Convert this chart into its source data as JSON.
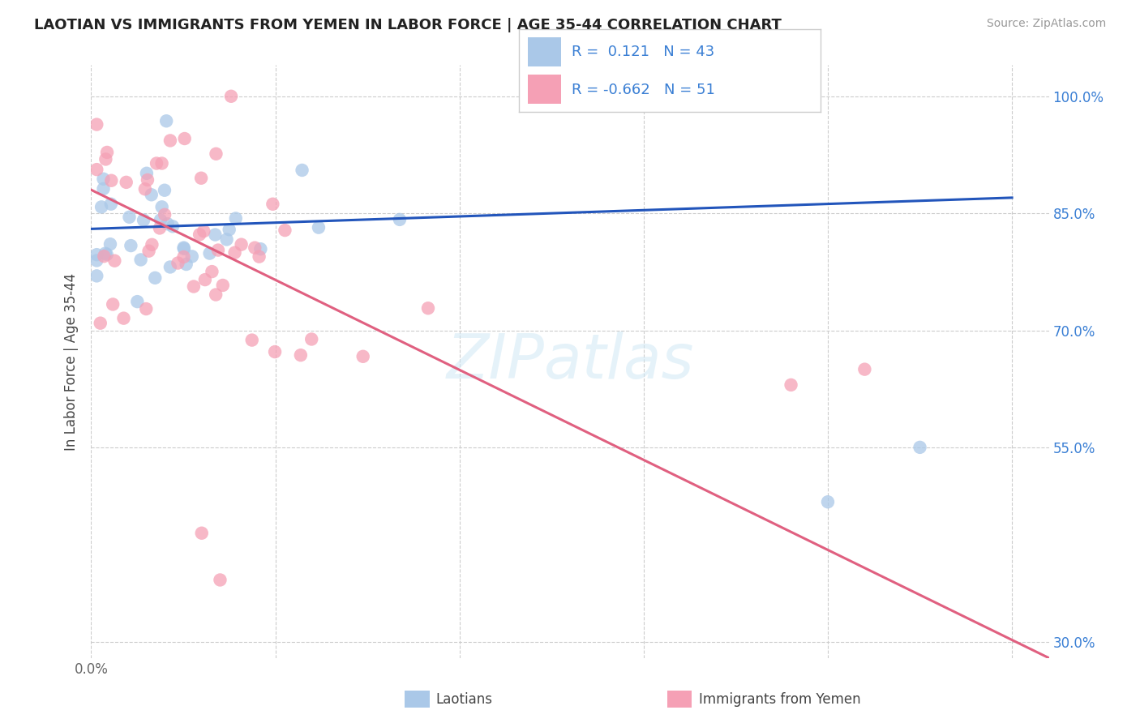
{
  "title": "LAOTIAN VS IMMIGRANTS FROM YEMEN IN LABOR FORCE | AGE 35-44 CORRELATION CHART",
  "source": "Source: ZipAtlas.com",
  "ylabel": "In Labor Force | Age 35-44",
  "blue_R": 0.121,
  "blue_N": 43,
  "pink_R": -0.662,
  "pink_N": 51,
  "blue_color": "#aac8e8",
  "blue_line_color": "#2255bb",
  "pink_color": "#f5a0b5",
  "pink_line_color": "#e06080",
  "legend_blue_R": "0.121",
  "legend_pink_R": "-0.662",
  "xlim": [
    0.0,
    0.52
  ],
  "ylim": [
    0.28,
    1.04
  ],
  "yticks": [
    0.3,
    0.55,
    0.7,
    0.85,
    1.0
  ],
  "ytick_labels": [
    "30.0%",
    "55.0%",
    "70.0%",
    "85.0%",
    "100.0%"
  ],
  "grid_color": "#cccccc",
  "watermark_color": "#d0e8f5",
  "bottom_legend_labels": [
    "Laotians",
    "Immigrants from Yemen"
  ],
  "blue_trend": [
    0.0,
    0.83,
    0.5,
    0.87
  ],
  "pink_trend": [
    0.0,
    0.88,
    0.52,
    0.28
  ]
}
